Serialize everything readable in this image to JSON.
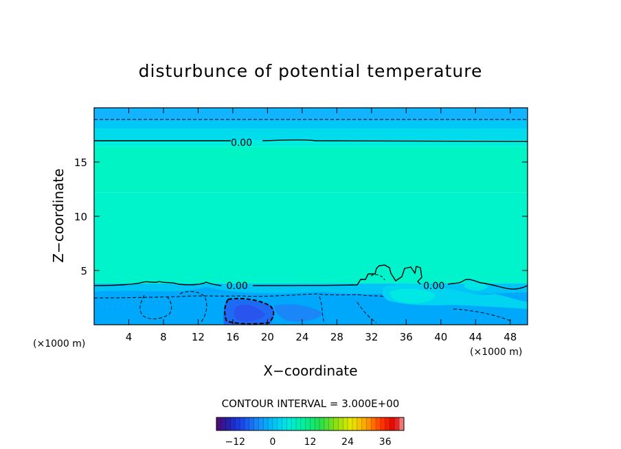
{
  "chart_data": {
    "type": "heatmap",
    "title": "disturbunce of potential temperature",
    "xlabel": "X−coordinate",
    "ylabel": "Z−coordinate",
    "x_unit_left": "(×1000 m)",
    "x_unit_right": "(×1000 m)",
    "xlim": [
      0,
      50
    ],
    "ylim": [
      0,
      20
    ],
    "x_ticks": [
      4,
      8,
      12,
      16,
      20,
      24,
      28,
      32,
      36,
      40,
      44,
      48
    ],
    "y_ticks": [
      5,
      10,
      15
    ],
    "contour_labels": [
      {
        "text": "0.00",
        "x": 17.0,
        "z": 16.8
      },
      {
        "text": "0.00",
        "x": 16.5,
        "z": 3.6
      },
      {
        "text": "0.00",
        "x": 39.2,
        "z": 3.6
      }
    ],
    "contour_interval_text": "CONTOUR INTERVAL =  3.000E+00",
    "colorbar": {
      "range": [
        -18,
        42
      ],
      "ticks": [
        -12,
        0,
        12,
        24,
        36
      ],
      "tick_labels": [
        "−12",
        "0",
        "12",
        "24",
        "36"
      ]
    },
    "bands": [
      {
        "z0": 18.8,
        "z1": 20.0,
        "color": "#12b4ff"
      },
      {
        "z0": 18.1,
        "z1": 18.8,
        "color": "#00c8f6"
      },
      {
        "z0": 17.0,
        "z1": 18.1,
        "color": "#00dcec"
      },
      {
        "z0": 16.4,
        "z1": 17.0,
        "color": "#00eedc"
      },
      {
        "z0": 12.2,
        "z1": 16.4,
        "color": "#00f4c4"
      },
      {
        "z0": 3.8,
        "z1": 12.2,
        "color": "#00f4cc"
      },
      {
        "z0": 2.6,
        "z1": 3.8,
        "color": "#00c4f6"
      },
      {
        "z0": 0.0,
        "z1": 2.6,
        "color": "#00b0fc"
      }
    ]
  }
}
